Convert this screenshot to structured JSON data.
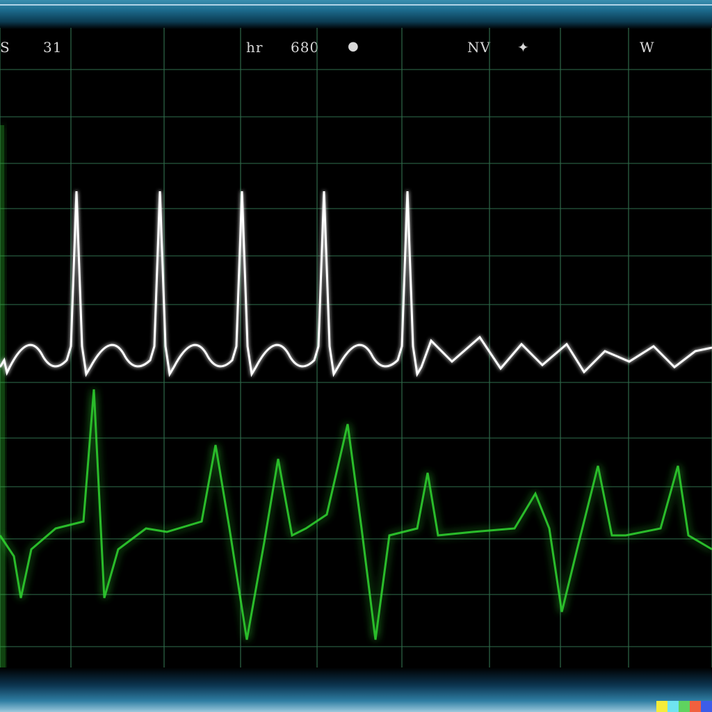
{
  "monitor": {
    "readouts": [
      {
        "id": "label-s",
        "text": "S"
      },
      {
        "id": "label-31",
        "text": "31"
      },
      {
        "id": "label-hr",
        "text": "hr"
      },
      {
        "id": "label-680",
        "text": "680"
      },
      {
        "id": "label-dot",
        "text": "●"
      },
      {
        "id": "label-nv",
        "text": "NV"
      },
      {
        "id": "label-star",
        "text": "✦"
      },
      {
        "id": "label-w",
        "text": "W"
      }
    ]
  },
  "colors": {
    "background": "#000000",
    "grid": "#2f6a4a",
    "upper_trace": "#ffffff",
    "lower_trace": "#33dd33",
    "frame": "#1c6a8c"
  },
  "traces": {
    "upper": {
      "name": "",
      "beats": 5,
      "color": "white"
    },
    "lower": {
      "name": "",
      "color": "green"
    }
  },
  "palette": [
    "#f5ec3a",
    "#6fe3f0",
    "#5fd35f",
    "#f0603e",
    "#3c5de8"
  ]
}
